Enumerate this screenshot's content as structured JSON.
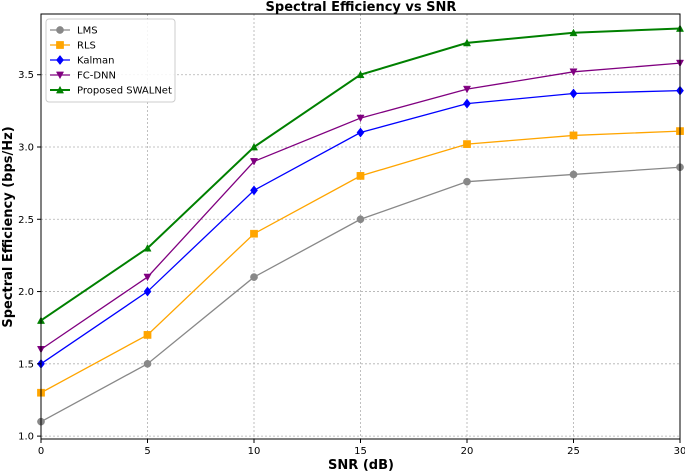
{
  "chart_data": {
    "type": "line",
    "title": "Spectral Efficiency vs SNR",
    "xlabel": "SNR (dB)",
    "ylabel": "Spectral Efficiency (bps/Hz)",
    "x": [
      0,
      5,
      10,
      15,
      20,
      25,
      30
    ],
    "xlim": [
      0,
      30
    ],
    "ylim": [
      0.98,
      3.92
    ],
    "xticks": [
      "0",
      "5",
      "10",
      "15",
      "20",
      "25",
      "30"
    ],
    "yticks": [
      "1.0",
      "1.5",
      "2.0",
      "2.5",
      "3.0",
      "3.5"
    ],
    "grid": true,
    "legend_position": "top-left",
    "series": [
      {
        "name": "LMS",
        "color": "#888888",
        "marker": "circle",
        "values": [
          1.1,
          1.5,
          2.1,
          2.5,
          2.76,
          2.81,
          2.86
        ]
      },
      {
        "name": "RLS",
        "color": "#ffa500",
        "marker": "square",
        "values": [
          1.3,
          1.7,
          2.4,
          2.8,
          3.02,
          3.08,
          3.11
        ]
      },
      {
        "name": "Kalman",
        "color": "#0000ff",
        "marker": "diamond",
        "values": [
          1.5,
          2.0,
          2.7,
          3.1,
          3.3,
          3.37,
          3.39
        ]
      },
      {
        "name": "FC-DNN",
        "color": "#800080",
        "marker": "triangle-down",
        "values": [
          1.6,
          2.1,
          2.9,
          3.2,
          3.4,
          3.52,
          3.58
        ]
      },
      {
        "name": "Proposed SWALNet",
        "color": "#008000",
        "marker": "triangle-up",
        "lineWidth": 2,
        "values": [
          1.8,
          2.3,
          3.0,
          3.5,
          3.72,
          3.79,
          3.82
        ]
      }
    ]
  }
}
